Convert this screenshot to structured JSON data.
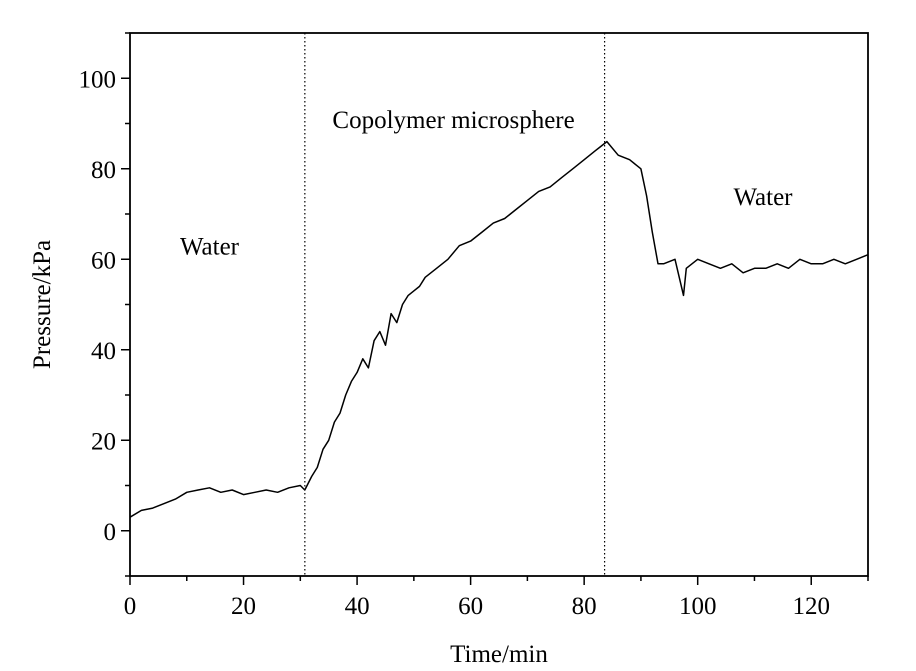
{
  "chart_data": {
    "type": "line",
    "xlabel": "Time/min",
    "ylabel": "Pressure/kPa",
    "xlim": [
      0,
      130
    ],
    "ylim": [
      -10,
      110
    ],
    "x_ticks": [
      0,
      20,
      40,
      60,
      80,
      100,
      120
    ],
    "y_ticks": [
      0,
      20,
      40,
      60,
      80,
      100
    ],
    "x_tick_labels": [
      "0",
      "20",
      "40",
      "60",
      "80",
      "100",
      "120"
    ],
    "y_tick_labels": [
      "0",
      "20",
      "40",
      "60",
      "80",
      "100"
    ],
    "grid": false,
    "line_color": "#000000",
    "phase_boundaries": [
      30.8,
      83.6
    ],
    "annotations": [
      {
        "text": "Water",
        "x": 14,
        "y": 63
      },
      {
        "text": "Copolymer microsphere",
        "x": 57,
        "y": 91
      },
      {
        "text": "Water",
        "x": 111.5,
        "y": 74
      }
    ],
    "series": [
      {
        "x": [
          0,
          2,
          4,
          6,
          8,
          10,
          12,
          14,
          16,
          18,
          20,
          22,
          24,
          26,
          28,
          30,
          30.8,
          32,
          33,
          34,
          35,
          36,
          37,
          38,
          39,
          40,
          41,
          42,
          43,
          44,
          45,
          46,
          47,
          48,
          49,
          50,
          51,
          52,
          54,
          56,
          58,
          60,
          62,
          64,
          66,
          68,
          70,
          72,
          74,
          76,
          78,
          80,
          82,
          83,
          84,
          86,
          88,
          90,
          91,
          92,
          93,
          94,
          96,
          97.5,
          98,
          100,
          102,
          104,
          106,
          108,
          110,
          112,
          114,
          116,
          118,
          120,
          122,
          124,
          126,
          128,
          130
        ],
        "y": [
          3,
          4.5,
          5,
          6,
          7,
          8.5,
          9,
          9.5,
          8.5,
          9,
          8,
          8.5,
          9,
          8.5,
          9.5,
          10,
          9,
          12,
          14,
          18,
          20,
          24,
          26,
          30,
          33,
          35,
          38,
          36,
          42,
          44,
          41,
          48,
          46,
          50,
          52,
          53,
          54,
          56,
          58,
          60,
          63,
          64,
          66,
          68,
          69,
          71,
          73,
          75,
          76,
          78,
          80,
          82,
          84,
          85,
          86,
          83,
          82,
          80,
          74,
          66,
          59,
          59,
          60,
          52,
          58,
          60,
          59,
          58,
          59,
          57,
          58,
          58,
          59,
          58,
          60,
          59,
          59,
          60,
          59,
          60,
          61
        ]
      }
    ]
  }
}
